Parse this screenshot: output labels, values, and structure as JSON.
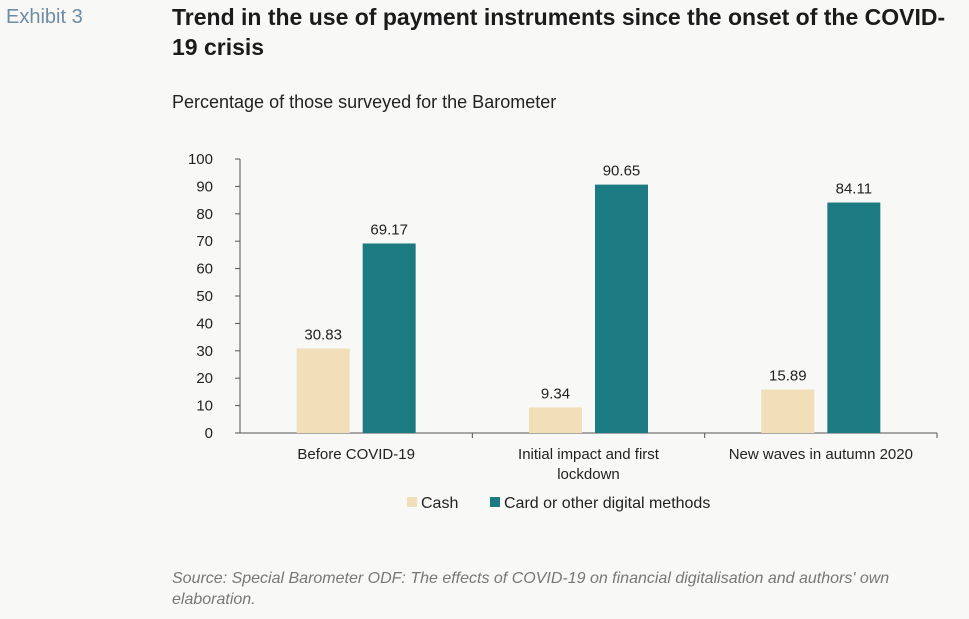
{
  "header": {
    "exhibit": "Exhibit 3",
    "title": "Trend in the use of payment instruments since the onset of the COVID-19 crisis",
    "subtitle": "Percentage of those surveyed for the Barometer"
  },
  "chart_data": {
    "type": "bar",
    "categories": [
      [
        "Before COVID-19"
      ],
      [
        "Initial impact and first",
        "lockdown"
      ],
      [
        "New waves in autumn 2020"
      ]
    ],
    "series": [
      {
        "name": "Cash",
        "color": "#f0dfb9",
        "values": [
          30.83,
          9.34,
          15.89
        ],
        "labels": [
          "30.83",
          "9.34",
          "15.89"
        ]
      },
      {
        "name": "Card or other digital methods",
        "color": "#1c7b82",
        "values": [
          69.17,
          90.65,
          84.11
        ],
        "labels": [
          "69.17",
          "90.65",
          "84.11"
        ]
      }
    ],
    "ylim": [
      0,
      100
    ],
    "yticks": [
      0,
      10,
      20,
      30,
      40,
      50,
      60,
      70,
      80,
      90,
      100
    ],
    "legend": "bottom",
    "grid": false
  },
  "footer": {
    "source": "Source: Special Barometer ODF: The effects of COVID-19 on financial digitalisation and authors' own elaboration."
  }
}
